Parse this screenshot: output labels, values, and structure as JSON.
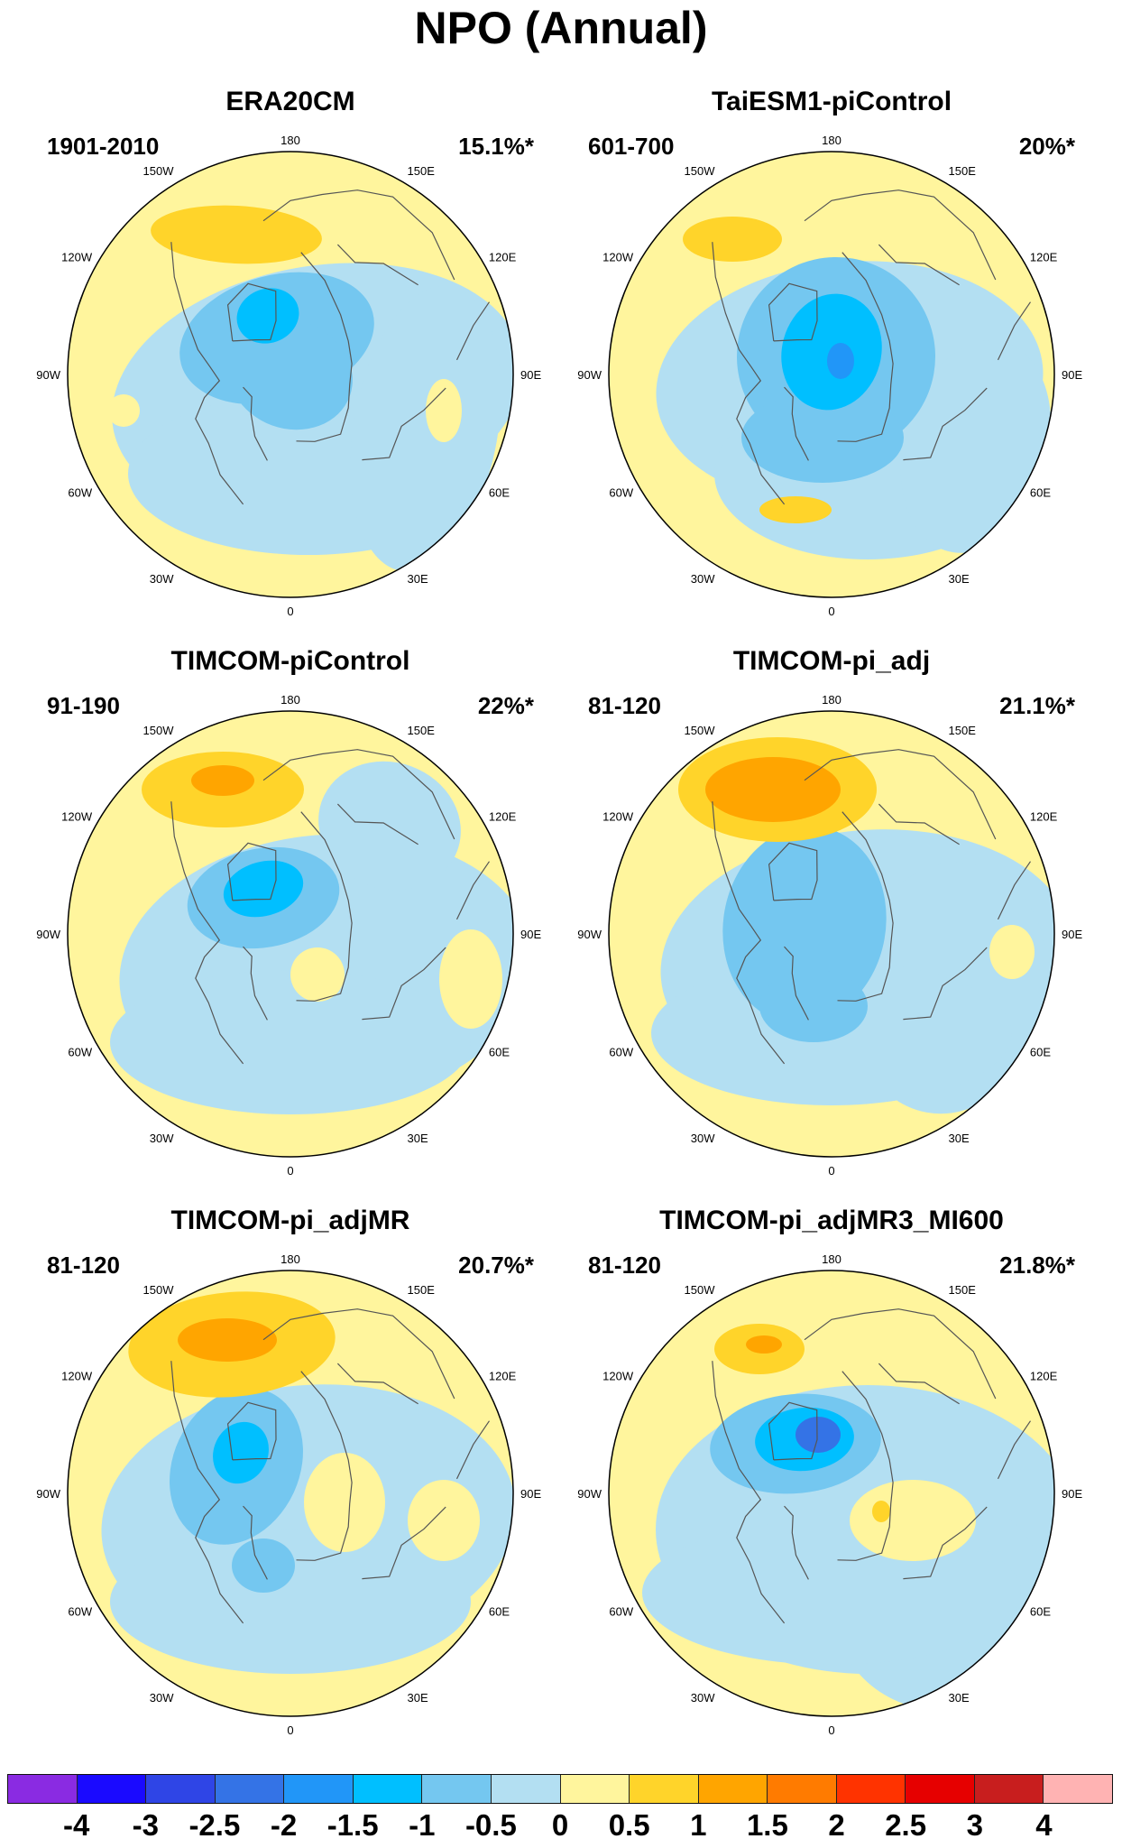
{
  "title": "NPO (Annual)",
  "lon_labels": [
    "180",
    "150E",
    "120E",
    "90E",
    "60E",
    "30E",
    "0",
    "30W",
    "60W",
    "90W",
    "120W",
    "150W"
  ],
  "panels": [
    {
      "title": "ERA20CM",
      "period": "1901-2010",
      "percent": "15.1%*"
    },
    {
      "title": "TaiESM1-piControl",
      "period": "601-700",
      "percent": "20%*"
    },
    {
      "title": "TIMCOM-piControl",
      "period": "91-190",
      "percent": "22%*"
    },
    {
      "title": "TIMCOM-pi_adj",
      "period": "81-120",
      "percent": "21.1%*"
    },
    {
      "title": "TIMCOM-pi_adjMR",
      "period": "81-120",
      "percent": "20.7%*"
    },
    {
      "title": "TIMCOM-pi_adjMR3_MI600",
      "period": "81-120",
      "percent": "21.8%*"
    }
  ],
  "colorbar": {
    "labels": [
      "-4",
      "-3",
      "-2.5",
      "-2",
      "-1.5",
      "-1",
      "-0.5",
      "0",
      "0.5",
      "1",
      "1.5",
      "2",
      "2.5",
      "3",
      "4"
    ],
    "colors": [
      "#8a2be2",
      "#1a0aff",
      "#2f45e6",
      "#3473e6",
      "#2196f8",
      "#00bfff",
      "#74c7f0",
      "#b3dff2",
      "#fff59d",
      "#ffd42a",
      "#ffa500",
      "#ff7b00",
      "#ff3300",
      "#e60000",
      "#c81e1e",
      "#ffb3b3"
    ]
  },
  "colors": {
    "zero_neg": "#b3dff2",
    "zero_pos": "#fff59d",
    "coast": "#555555"
  }
}
